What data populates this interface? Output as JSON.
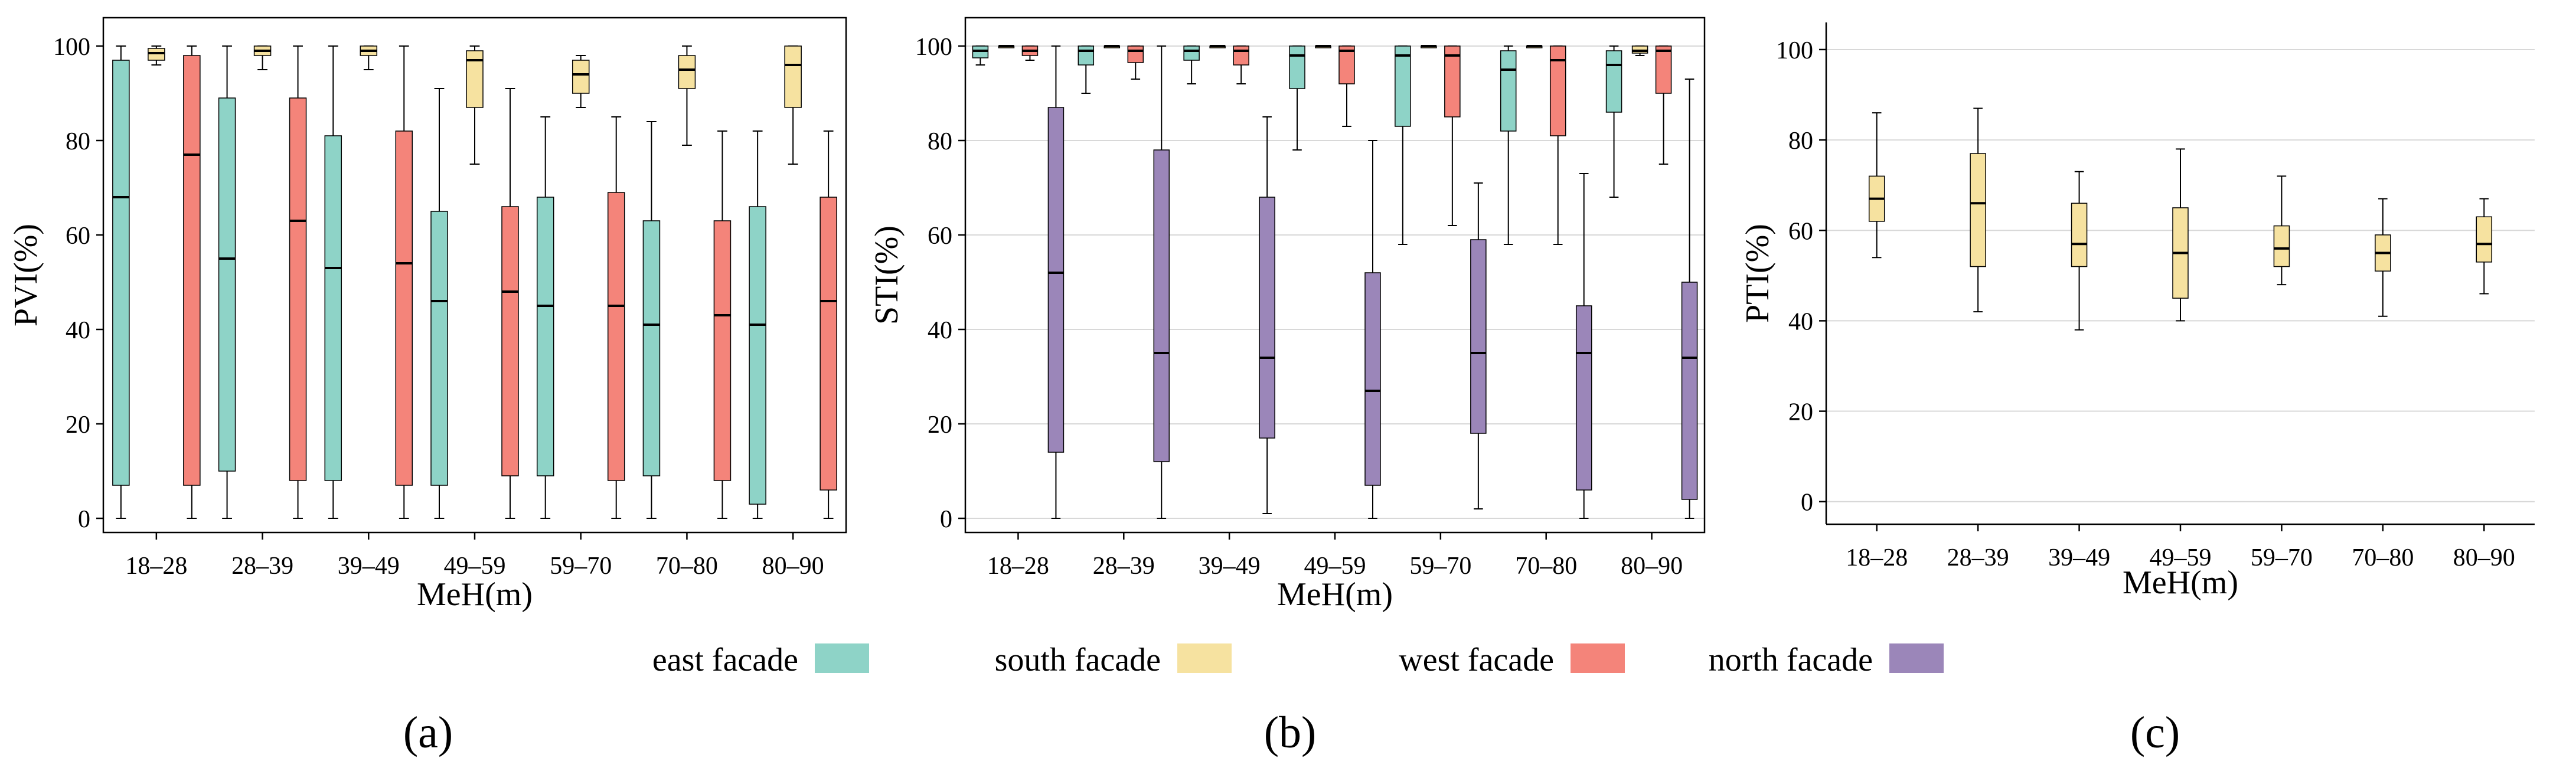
{
  "colors": {
    "east": "#8ed3c7",
    "south": "#f6e2a0",
    "west": "#f4847a",
    "north": "#9b86b9"
  },
  "legend": [
    {
      "key": "east",
      "label": "east facade"
    },
    {
      "key": "south",
      "label": "south facade"
    },
    {
      "key": "west",
      "label": "west facade"
    },
    {
      "key": "north",
      "label": "north facade"
    }
  ],
  "chart_data": [
    {
      "type": "box",
      "panel_label": "(a)",
      "xlabel": "MeH(m)",
      "ylabel": "PVI(%)",
      "ylim": [
        -3,
        106
      ],
      "yticks": [
        "0",
        "20",
        "40",
        "60",
        "80",
        "100"
      ],
      "grid": "horizontal",
      "categories": [
        "18–28",
        "28–39",
        "39–49",
        "49–59",
        "59–70",
        "70–80",
        "80–90"
      ],
      "series": [
        {
          "name": "east facade",
          "key": "east",
          "boxes": [
            {
              "min": 0,
              "q1": 7,
              "median": 68,
              "q3": 97,
              "max": 100
            },
            {
              "min": 0,
              "q1": 10,
              "median": 55,
              "q3": 89,
              "max": 100
            },
            {
              "min": 0,
              "q1": 8,
              "median": 53,
              "q3": 81,
              "max": 100
            },
            {
              "min": 0,
              "q1": 7,
              "median": 46,
              "q3": 65,
              "max": 91
            },
            {
              "min": 0,
              "q1": 9,
              "median": 45,
              "q3": 68,
              "max": 85
            },
            {
              "min": 0,
              "q1": 9,
              "median": 41,
              "q3": 63,
              "max": 84
            },
            {
              "min": 0,
              "q1": 3,
              "median": 41,
              "q3": 66,
              "max": 82
            }
          ]
        },
        {
          "name": "south facade",
          "key": "south",
          "boxes": [
            {
              "min": 96,
              "q1": 97,
              "median": 98.5,
              "q3": 99.5,
              "max": 100
            },
            {
              "min": 95,
              "q1": 98,
              "median": 99,
              "q3": 100,
              "max": 100
            },
            {
              "min": 95,
              "q1": 98,
              "median": 99,
              "q3": 100,
              "max": 100
            },
            {
              "min": 75,
              "q1": 87,
              "median": 97,
              "q3": 99,
              "max": 100
            },
            {
              "min": 87,
              "q1": 90,
              "median": 94,
              "q3": 97,
              "max": 98
            },
            {
              "min": 79,
              "q1": 91,
              "median": 95,
              "q3": 98,
              "max": 100
            },
            {
              "min": 75,
              "q1": 87,
              "median": 96,
              "q3": 100,
              "max": 100
            }
          ]
        },
        {
          "name": "west facade",
          "key": "west",
          "boxes": [
            {
              "min": 0,
              "q1": 7,
              "median": 77,
              "q3": 98,
              "max": 100
            },
            {
              "min": 0,
              "q1": 8,
              "median": 63,
              "q3": 89,
              "max": 100
            },
            {
              "min": 0,
              "q1": 7,
              "median": 54,
              "q3": 82,
              "max": 100
            },
            {
              "min": 0,
              "q1": 9,
              "median": 48,
              "q3": 66,
              "max": 91
            },
            {
              "min": 0,
              "q1": 8,
              "median": 45,
              "q3": 69,
              "max": 85
            },
            {
              "min": 0,
              "q1": 8,
              "median": 43,
              "q3": 63,
              "max": 82
            },
            {
              "min": 0,
              "q1": 6,
              "median": 46,
              "q3": 68,
              "max": 82
            }
          ]
        }
      ]
    },
    {
      "type": "box",
      "panel_label": "(b)",
      "xlabel": "MeH(m)",
      "ylabel": "STI(%)",
      "ylim": [
        -3,
        106
      ],
      "yticks": [
        "0",
        "20",
        "40",
        "60",
        "80",
        "100"
      ],
      "grid": "horizontal",
      "categories": [
        "18–28",
        "28–39",
        "39–49",
        "49–59",
        "59–70",
        "70–80",
        "80–90"
      ],
      "series": [
        {
          "name": "east facade",
          "key": "east",
          "boxes": [
            {
              "min": 96,
              "q1": 97.5,
              "median": 99,
              "q3": 100,
              "max": 100
            },
            {
              "min": 90,
              "q1": 96,
              "median": 99,
              "q3": 100,
              "max": 100
            },
            {
              "min": 92,
              "q1": 97,
              "median": 99,
              "q3": 100,
              "max": 100
            },
            {
              "min": 78,
              "q1": 91,
              "median": 98,
              "q3": 100,
              "max": 100
            },
            {
              "min": 58,
              "q1": 83,
              "median": 98,
              "q3": 100,
              "max": 100
            },
            {
              "min": 58,
              "q1": 82,
              "median": 95,
              "q3": 99,
              "max": 100
            },
            {
              "min": 68,
              "q1": 86,
              "median": 96,
              "q3": 99,
              "max": 100
            }
          ]
        },
        {
          "name": "south facade",
          "key": "south",
          "boxes": [
            {
              "min": 100,
              "q1": 100,
              "median": 100,
              "q3": 100,
              "max": 100
            },
            {
              "min": 100,
              "q1": 100,
              "median": 100,
              "q3": 100,
              "max": 100
            },
            {
              "min": 100,
              "q1": 100,
              "median": 100,
              "q3": 100,
              "max": 100
            },
            {
              "min": 100,
              "q1": 100,
              "median": 100,
              "q3": 100,
              "max": 100
            },
            {
              "min": 100,
              "q1": 100,
              "median": 100,
              "q3": 100,
              "max": 100
            },
            {
              "min": 100,
              "q1": 100,
              "median": 100,
              "q3": 100,
              "max": 100
            },
            {
              "min": 98,
              "q1": 98.5,
              "median": 99,
              "q3": 100,
              "max": 100
            }
          ]
        },
        {
          "name": "west facade",
          "key": "west",
          "boxes": [
            {
              "min": 97,
              "q1": 98,
              "median": 99,
              "q3": 100,
              "max": 100
            },
            {
              "min": 93,
              "q1": 96.5,
              "median": 99,
              "q3": 100,
              "max": 100
            },
            {
              "min": 92,
              "q1": 96,
              "median": 99,
              "q3": 100,
              "max": 100
            },
            {
              "min": 83,
              "q1": 92,
              "median": 99,
              "q3": 100,
              "max": 100
            },
            {
              "min": 62,
              "q1": 85,
              "median": 98,
              "q3": 100,
              "max": 100
            },
            {
              "min": 58,
              "q1": 81,
              "median": 97,
              "q3": 100,
              "max": 100
            },
            {
              "min": 75,
              "q1": 90,
              "median": 99,
              "q3": 100,
              "max": 100
            }
          ]
        },
        {
          "name": "north facade",
          "key": "north",
          "boxes": [
            {
              "min": 0,
              "q1": 14,
              "median": 52,
              "q3": 87,
              "max": 100
            },
            {
              "min": 0,
              "q1": 12,
              "median": 35,
              "q3": 78,
              "max": 100
            },
            {
              "min": 1,
              "q1": 17,
              "median": 34,
              "q3": 68,
              "max": 85
            },
            {
              "min": 0,
              "q1": 7,
              "median": 27,
              "q3": 52,
              "max": 80
            },
            {
              "min": 2,
              "q1": 18,
              "median": 35,
              "q3": 59,
              "max": 71
            },
            {
              "min": 0,
              "q1": 6,
              "median": 35,
              "q3": 45,
              "max": 73
            },
            {
              "min": 0,
              "q1": 4,
              "median": 34,
              "q3": 50,
              "max": 93
            }
          ]
        }
      ]
    },
    {
      "type": "box",
      "panel_label": "(c)",
      "xlabel": "MeH(m)",
      "ylabel": "PTI(%)",
      "ylim": [
        -5,
        106
      ],
      "yticks": [
        "0",
        "20",
        "40",
        "60",
        "80",
        "100"
      ],
      "grid": "horizontal",
      "categories": [
        "18–28",
        "28–39",
        "39–49",
        "49–59",
        "59–70",
        "70–80",
        "80–90"
      ],
      "series": [
        {
          "name": "south facade",
          "key": "south",
          "boxes": [
            {
              "min": 54,
              "q1": 62,
              "median": 67,
              "q3": 72,
              "max": 86
            },
            {
              "min": 42,
              "q1": 52,
              "median": 66,
              "q3": 77,
              "max": 87
            },
            {
              "min": 38,
              "q1": 52,
              "median": 57,
              "q3": 66,
              "max": 73
            },
            {
              "min": 40,
              "q1": 45,
              "median": 55,
              "q3": 65,
              "max": 78
            },
            {
              "min": 48,
              "q1": 52,
              "median": 56,
              "q3": 61,
              "max": 72
            },
            {
              "min": 41,
              "q1": 51,
              "median": 55,
              "q3": 59,
              "max": 67
            },
            {
              "min": 46,
              "q1": 53,
              "median": 57,
              "q3": 63,
              "max": 67
            }
          ]
        }
      ]
    }
  ]
}
